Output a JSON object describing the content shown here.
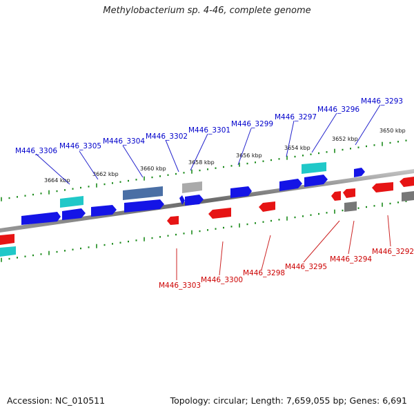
{
  "title": "Methylobacterium sp. 4-46, complete genome",
  "footer": {
    "accession": "Accession: NC_010511",
    "summary": "Topology: circular; Length: 7,659,055 bp; Genes: 6,691"
  },
  "kbp_labels": [
    "3664 kbp",
    "3662 kbp",
    "3660 kbp",
    "3658 kbp",
    "3656 kbp",
    "3654 kbp",
    "3652 kbp",
    "3650 kbp"
  ],
  "genes_top": [
    "M446_3306",
    "M446_3305",
    "M446_3304",
    "M446_3302",
    "M446_3301",
    "M446_3299",
    "M446_3297",
    "M446_3296",
    "M446_3293"
  ],
  "genes_bottom": [
    "M446_3303",
    "M446_3300",
    "M446_3298",
    "M446_3295",
    "M446_3294",
    "M446_3292"
  ],
  "colors": {
    "forward_gene": "#1414e6",
    "reverse_gene": "#e61414",
    "rna": "#20c8c8",
    "pseudo": "#4a6fa5",
    "other": "#888888",
    "tick": "#1a8a1a",
    "backbone": "#777777"
  }
}
